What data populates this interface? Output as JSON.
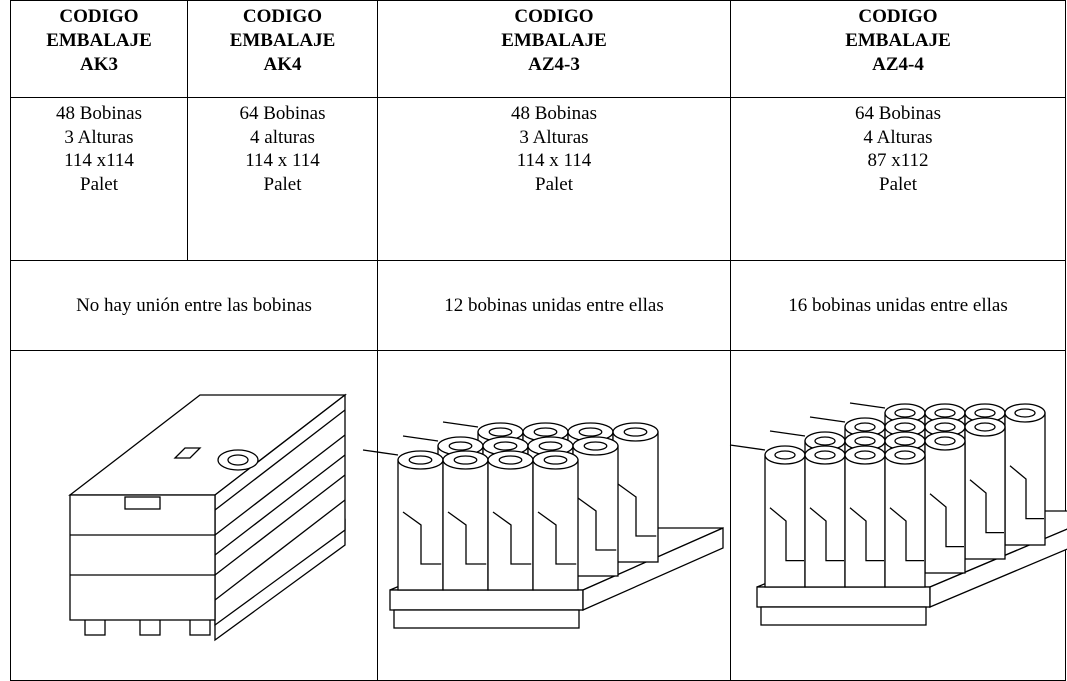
{
  "table": {
    "header": [
      [
        "CODIGO",
        "EMBALAJE",
        "AK3"
      ],
      [
        "CODIGO",
        "EMBALAJE",
        "AK4"
      ],
      [
        "CODIGO",
        "EMBALAJE",
        "AZ4-3"
      ],
      [
        "CODIGO",
        "EMBALAJE",
        "AZ4-4"
      ]
    ],
    "specs": [
      [
        "48 Bobinas",
        "3 Alturas",
        "114  x114",
        "Palet"
      ],
      [
        "64 Bobinas",
        "4 alturas",
        "114  x 114",
        "Palet"
      ],
      [
        "48 Bobinas",
        "3 Alturas",
        "114 x 114",
        "Palet"
      ],
      [
        "64 Bobinas",
        "4 Alturas",
        "87  x112",
        "Palet"
      ]
    ],
    "union": [
      "No hay unión entre las bobinas",
      "12 bobinas unidas entre ellas",
      "16 bobinas unidas entre ellas"
    ]
  }
}
